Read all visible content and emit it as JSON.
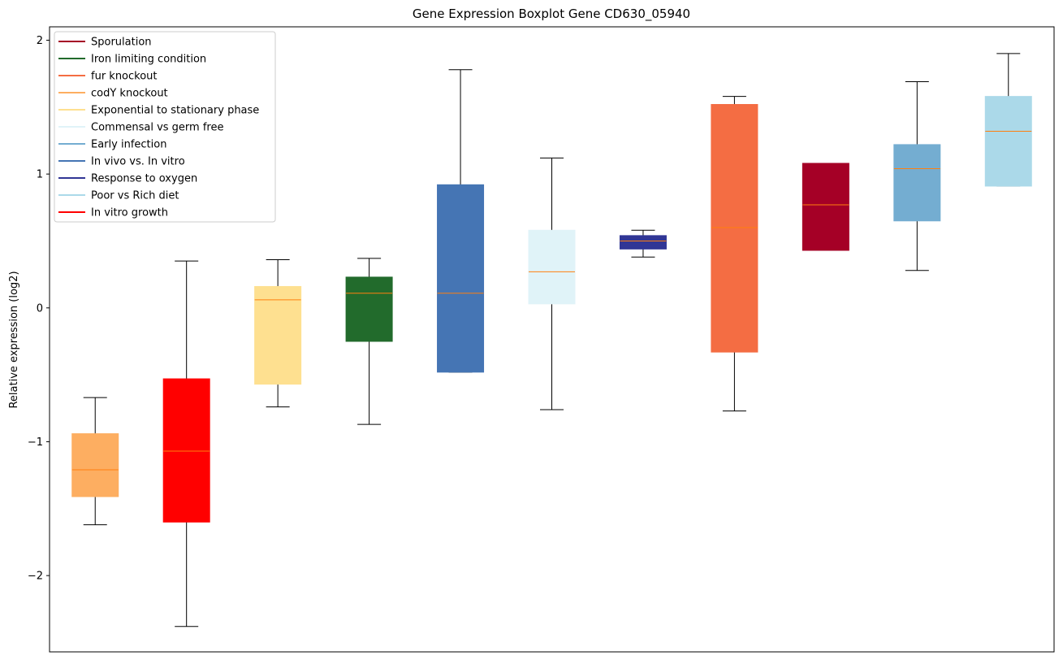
{
  "chart_data": {
    "type": "boxplot",
    "title": "Gene Expression Boxplot Gene CD630_05940",
    "ylabel": "Relative expression (log2)",
    "xlabel": "",
    "ylim": [
      -2.57,
      2.1
    ],
    "yticks": [
      -2,
      -1,
      0,
      1,
      2
    ],
    "ytick_labels": [
      "−2",
      "−1",
      "0",
      "1",
      "2"
    ],
    "grid": false,
    "legend_position": "top-left",
    "legend": [
      {
        "label": "Sporulation",
        "color": "#a50026"
      },
      {
        "label": "Iron limiting condition",
        "color": "#226b2c"
      },
      {
        "label": "fur knockout",
        "color": "#f46d43"
      },
      {
        "label": "codY knockout",
        "color": "#fdae61"
      },
      {
        "label": "Exponential to stationary phase",
        "color": "#fee090"
      },
      {
        "label": "Commensal vs germ free",
        "color": "#e0f3f8"
      },
      {
        "label": "Early infection",
        "color": "#74add1"
      },
      {
        "label": "In vivo vs. In vitro",
        "color": "#4575b4"
      },
      {
        "label": "Response to oxygen",
        "color": "#313695"
      },
      {
        "label": "Poor vs Rich diet",
        "color": "#abd9e9"
      },
      {
        "label": "In vitro growth",
        "color": "#ff0000"
      }
    ],
    "series": [
      {
        "name": "codY knockout",
        "color": "#fdae61",
        "whislo": -1.62,
        "q1": -1.41,
        "med": -1.21,
        "q3": -0.94,
        "whishi": -0.67
      },
      {
        "name": "In vitro growth",
        "color": "#ff0000",
        "whislo": -2.38,
        "q1": -1.6,
        "med": -1.07,
        "q3": -0.53,
        "whishi": 0.35
      },
      {
        "name": "Exponential to stationary phase",
        "color": "#fee090",
        "whislo": -0.74,
        "q1": -0.57,
        "med": 0.06,
        "q3": 0.16,
        "whishi": 0.36
      },
      {
        "name": "Iron limiting condition",
        "color": "#226b2c",
        "whislo": -0.87,
        "q1": -0.25,
        "med": 0.11,
        "q3": 0.23,
        "whishi": 0.37
      },
      {
        "name": "In vivo vs. In vitro",
        "color": "#4575b4",
        "whislo": -0.48,
        "q1": -0.48,
        "med": 0.11,
        "q3": 0.92,
        "whishi": 1.78
      },
      {
        "name": "Commensal vs germ free",
        "color": "#e0f3f8",
        "whislo": -0.76,
        "q1": 0.03,
        "med": 0.27,
        "q3": 0.58,
        "whishi": 1.12
      },
      {
        "name": "Response to oxygen",
        "color": "#313695",
        "whislo": 0.38,
        "q1": 0.44,
        "med": 0.5,
        "q3": 0.54,
        "whishi": 0.58
      },
      {
        "name": "fur knockout",
        "color": "#f46d43",
        "whislo": -0.77,
        "q1": -0.33,
        "med": 0.6,
        "q3": 1.52,
        "whishi": 1.58
      },
      {
        "name": "Sporulation",
        "color": "#a50026",
        "whislo": 0.43,
        "q1": 0.43,
        "med": 0.77,
        "q3": 1.08,
        "whishi": 1.08
      },
      {
        "name": "Early infection",
        "color": "#74add1",
        "whislo": 0.28,
        "q1": 0.65,
        "med": 1.04,
        "q3": 1.22,
        "whishi": 1.69
      },
      {
        "name": "Poor vs Rich diet",
        "color": "#abd9e9",
        "whislo": 0.91,
        "q1": 0.91,
        "med": 1.32,
        "q3": 1.58,
        "whishi": 1.9
      }
    ],
    "median_color": "#ff7f0e"
  }
}
